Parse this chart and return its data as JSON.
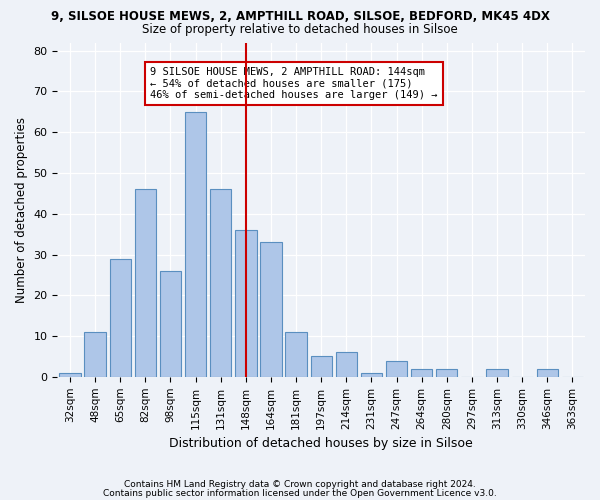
{
  "title_line1": "9, SILSOE HOUSE MEWS, 2, AMPTHILL ROAD, SILSOE, BEDFORD, MK45 4DX",
  "title_line2": "Size of property relative to detached houses in Silsoe",
  "xlabel": "Distribution of detached houses by size in Silsoe",
  "ylabel": "Number of detached properties",
  "categories": [
    "32sqm",
    "48sqm",
    "65sqm",
    "82sqm",
    "98sqm",
    "115sqm",
    "131sqm",
    "148sqm",
    "164sqm",
    "181sqm",
    "197sqm",
    "214sqm",
    "231sqm",
    "247sqm",
    "264sqm",
    "280sqm",
    "297sqm",
    "313sqm",
    "330sqm",
    "346sqm",
    "363sqm"
  ],
  "values": [
    1,
    11,
    29,
    46,
    26,
    65,
    46,
    36,
    33,
    11,
    5,
    6,
    1,
    4,
    2,
    2,
    0,
    2,
    0,
    2,
    0
  ],
  "bar_color": "#aec6e8",
  "bar_edge_color": "#5a8fc0",
  "vline_x": 7,
  "vline_color": "#cc0000",
  "annotation_text": "9 SILSOE HOUSE MEWS, 2 AMPTHILL ROAD: 144sqm\n← 54% of detached houses are smaller (175)\n46% of semi-detached houses are larger (149) →",
  "annotation_box_color": "#ffffff",
  "annotation_border_color": "#cc0000",
  "ylim": [
    0,
    82
  ],
  "yticks": [
    0,
    10,
    20,
    30,
    40,
    50,
    60,
    70,
    80
  ],
  "footer_line1": "Contains HM Land Registry data © Crown copyright and database right 2024.",
  "footer_line2": "Contains public sector information licensed under the Open Government Licence v3.0.",
  "bg_color": "#eef2f8",
  "plot_bg_color": "#eef2f8"
}
